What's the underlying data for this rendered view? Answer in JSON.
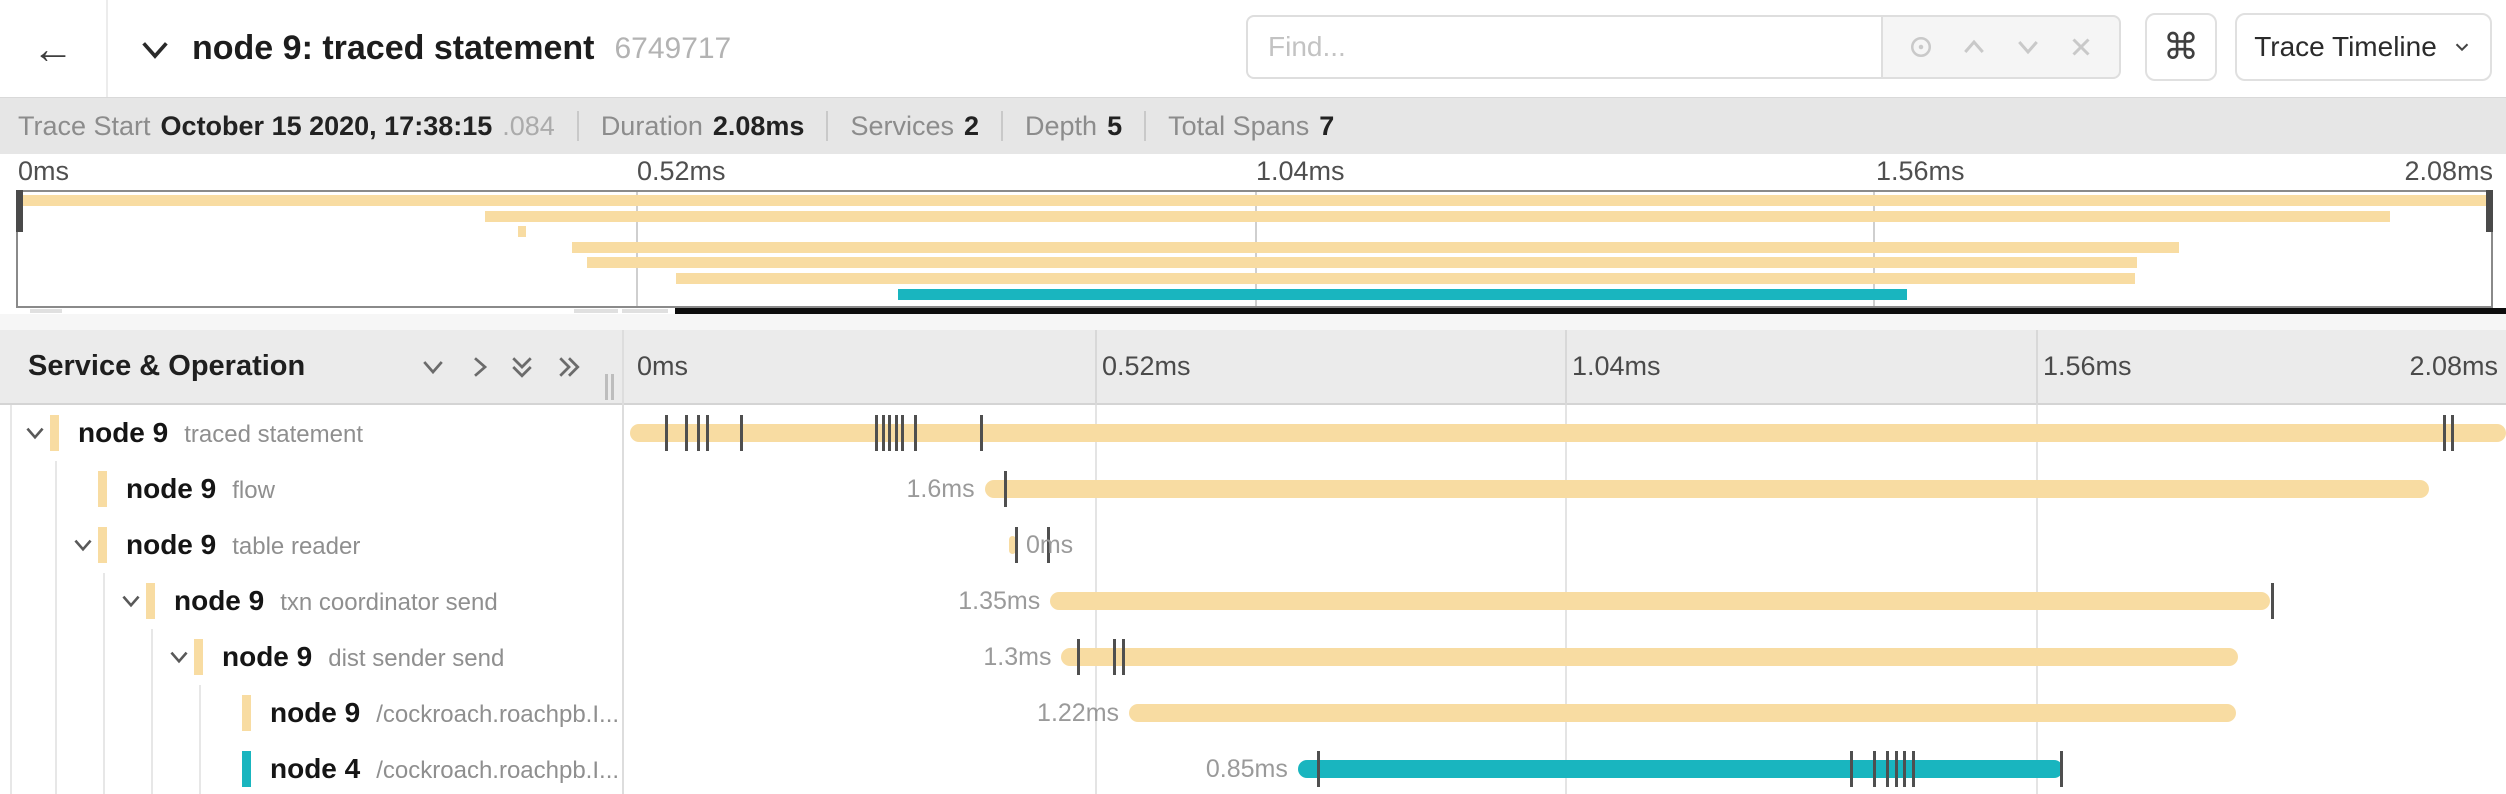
{
  "topbar": {
    "back_icon": "←",
    "title": "node 9: traced statement",
    "trace_id": "6749717",
    "find": {
      "placeholder": "Find...",
      "tools": [
        "locate-icon",
        "chevron-up-icon",
        "chevron-down-icon",
        "close-icon"
      ]
    },
    "shortcut_key": "⌘",
    "view_selector": "Trace Timeline"
  },
  "summary": {
    "items": [
      {
        "label": "Trace Start",
        "value": "October 15 2020, 17:38:15",
        "suffix": ".084"
      },
      {
        "label": "Duration",
        "value": "2.08ms"
      },
      {
        "label": "Services",
        "value": "2"
      },
      {
        "label": "Depth",
        "value": "5"
      },
      {
        "label": "Total Spans",
        "value": "7"
      }
    ]
  },
  "axis_ticks": [
    "0ms",
    "0.52ms",
    "1.04ms",
    "1.56ms",
    "2.08ms"
  ],
  "tree": {
    "header": "Service & Operation"
  },
  "colors": {
    "span_tan": "#f8dca2",
    "span_teal": "#19b5bf",
    "tick": "#4f4f4f"
  },
  "spans": [
    {
      "service": "node 9",
      "operation": "traced statement",
      "depth": 0,
      "expandable": true,
      "color": "tan",
      "start_pct": 0,
      "end_pct": 100,
      "duration_label": "",
      "label_side": "none",
      "tick_pcts": [
        1.9,
        3.0,
        3.6,
        4.1,
        5.9,
        13.1,
        13.5,
        13.8,
        14.2,
        14.5,
        15.2,
        18.7,
        96.7,
        97.1
      ]
    },
    {
      "service": "node 9",
      "operation": "flow",
      "depth": 1,
      "expandable": false,
      "color": "tan",
      "start_pct": 18.9,
      "end_pct": 95.9,
      "duration_label": "1.6ms",
      "label_side": "left",
      "tick_pcts": [
        20.0
      ]
    },
    {
      "service": "node 9",
      "operation": "table reader",
      "depth": 1,
      "expandable": true,
      "color": "tan",
      "start_pct": 20.2,
      "end_pct": 20.55,
      "duration_label": "0ms",
      "label_side": "right",
      "tick_pcts": [
        20.6,
        22.3
      ]
    },
    {
      "service": "node 9",
      "operation": "txn coordinator send",
      "depth": 2,
      "expandable": true,
      "color": "tan",
      "start_pct": 22.4,
      "end_pct": 87.4,
      "duration_label": "1.35ms",
      "label_side": "left",
      "tick_pcts": [
        87.5
      ]
    },
    {
      "service": "node 9",
      "operation": "dist sender send",
      "depth": 3,
      "expandable": true,
      "color": "tan",
      "start_pct": 23.0,
      "end_pct": 85.7,
      "duration_label": "1.3ms",
      "label_side": "left",
      "tick_pcts": [
        23.9,
        25.8,
        26.3
      ]
    },
    {
      "service": "node 9",
      "operation": "/cockroach.roachpb.I...",
      "depth": 4,
      "expandable": false,
      "color": "tan",
      "start_pct": 26.6,
      "end_pct": 85.6,
      "duration_label": "1.22ms",
      "label_side": "left",
      "tick_pcts": []
    },
    {
      "service": "node 4",
      "operation": "/cockroach.roachpb.I...",
      "depth": 4,
      "expandable": false,
      "color": "teal",
      "start_pct": 35.6,
      "end_pct": 76.4,
      "duration_label": "0.85ms",
      "label_side": "left",
      "tick_pcts": [
        36.7,
        65.1,
        66.3,
        67.0,
        67.5,
        67.9,
        68.4,
        76.3
      ]
    }
  ]
}
